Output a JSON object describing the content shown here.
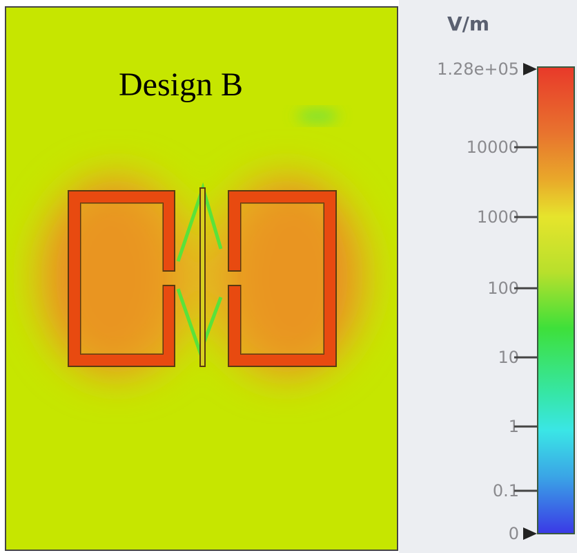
{
  "figure": {
    "title": "Design B",
    "colorbar": {
      "unit": "V/m",
      "ticks": [
        "1.28e+05",
        "10000",
        "1000",
        "100",
        "10",
        "1",
        "0.1",
        "0"
      ],
      "colors": [
        "#e83a2a",
        "#e9a82a",
        "#e6e42c",
        "#3ee03a",
        "#3ae6e6",
        "#3a3ae6"
      ]
    },
    "field_colors": {
      "background": "#c6e600",
      "hot": "#e84a10",
      "ring_outline": "#5a3a10"
    }
  }
}
